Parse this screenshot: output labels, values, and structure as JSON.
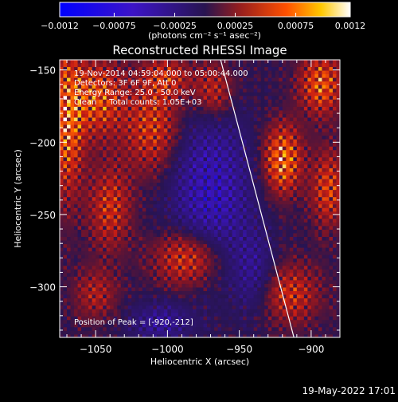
{
  "chart_data": {
    "type": "heatmap",
    "title": "Reconstructed RHESSI Image",
    "xlabel": "Heliocentric X (arcsec)",
    "ylabel": "Heliocentric Y (arcsec)",
    "xlim": [
      -1075,
      -880
    ],
    "ylim": [
      -335,
      -143
    ],
    "x_ticks": [
      -1050,
      -1000,
      -950,
      -900
    ],
    "y_ticks": [
      -150,
      -200,
      -250,
      -300
    ],
    "x_tick_labels": [
      "−1050",
      "−1000",
      "−950",
      "−900"
    ],
    "y_tick_labels": [
      "−150",
      "−200",
      "−250",
      "−300"
    ],
    "colorbar": {
      "range": [
        -0.0012,
        0.0012
      ],
      "tick_values": [
        -0.0012,
        -0.00075,
        -0.00025,
        0.00025,
        0.00075,
        0.0012
      ],
      "tick_labels": [
        "−0.0012",
        "−0.00075",
        "−0.00025",
        "0.00025",
        "0.00075",
        "0.0012"
      ],
      "unit_label": "(photons cm⁻² s⁻¹ asec⁻²)"
    },
    "annotations": [
      "19-Nov-2014 04:59:04.000 to 05:00:44.000",
      "Detectors: 3F 6F 9F, Att 0",
      "Energy Range: 25.0 - 50.0 keV",
      "Clean     Total counts: 1.05E+03"
    ],
    "peak_label": "Position of Peak = [-920,-212]",
    "limb_line": [
      [
        -963,
        -143
      ],
      [
        -912,
        -335
      ]
    ],
    "peak": [
      -920,
      -212
    ],
    "hot_regions": [
      {
        "x": -1070,
        "y": -185,
        "sx": 8,
        "sy": 35,
        "amp": 0.0011
      },
      {
        "x": -1048,
        "y": -170,
        "sx": 12,
        "sy": 18,
        "amp": 0.0009
      },
      {
        "x": -1040,
        "y": -245,
        "sx": 10,
        "sy": 20,
        "amp": 0.0007
      },
      {
        "x": -1010,
        "y": -190,
        "sx": 14,
        "sy": 22,
        "amp": 0.0008
      },
      {
        "x": -1000,
        "y": -155,
        "sx": 12,
        "sy": 10,
        "amp": 0.0006
      },
      {
        "x": -985,
        "y": -280,
        "sx": 16,
        "sy": 14,
        "amp": 0.001
      },
      {
        "x": -968,
        "y": -165,
        "sx": 10,
        "sy": 14,
        "amp": 0.0007
      },
      {
        "x": -920,
        "y": -212,
        "sx": 9,
        "sy": 16,
        "amp": 0.0012
      },
      {
        "x": -893,
        "y": -160,
        "sx": 10,
        "sy": 14,
        "amp": 0.001
      },
      {
        "x": -888,
        "y": -232,
        "sx": 8,
        "sy": 18,
        "amp": 0.0008
      },
      {
        "x": -915,
        "y": -305,
        "sx": 14,
        "sy": 14,
        "amp": 0.0007
      },
      {
        "x": -1050,
        "y": -305,
        "sx": 10,
        "sy": 12,
        "amp": 0.0005
      }
    ],
    "cold_regions": [
      {
        "x": -970,
        "y": -235,
        "sx": 20,
        "sy": 40,
        "amp": -0.0009
      },
      {
        "x": -1005,
        "y": -325,
        "sx": 15,
        "sy": 10,
        "amp": -0.0006
      },
      {
        "x": -940,
        "y": -290,
        "sx": 10,
        "sy": 20,
        "amp": -0.0005
      }
    ]
  },
  "footer": {
    "timestamp": "19-May-2022 17:01"
  }
}
